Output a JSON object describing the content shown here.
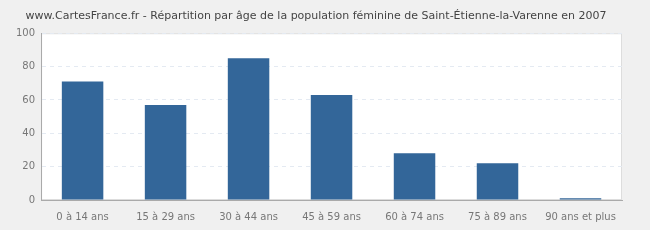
{
  "chart_data": {
    "type": "bar",
    "title": "www.CartesFrance.fr - Répartition par âge de la population féminine de Saint-Étienne-la-Varenne en 2007",
    "categories": [
      "0 à 14 ans",
      "15 à 29 ans",
      "30 à 44 ans",
      "45 à 59 ans",
      "60 à 74 ans",
      "75 à 89 ans",
      "90 ans et plus"
    ],
    "values": [
      71,
      57,
      85,
      63,
      28,
      22,
      1
    ],
    "color": "#336699",
    "ylim": [
      0,
      100
    ],
    "yticks": [
      0,
      20,
      40,
      60,
      80,
      100
    ],
    "grid": true
  }
}
